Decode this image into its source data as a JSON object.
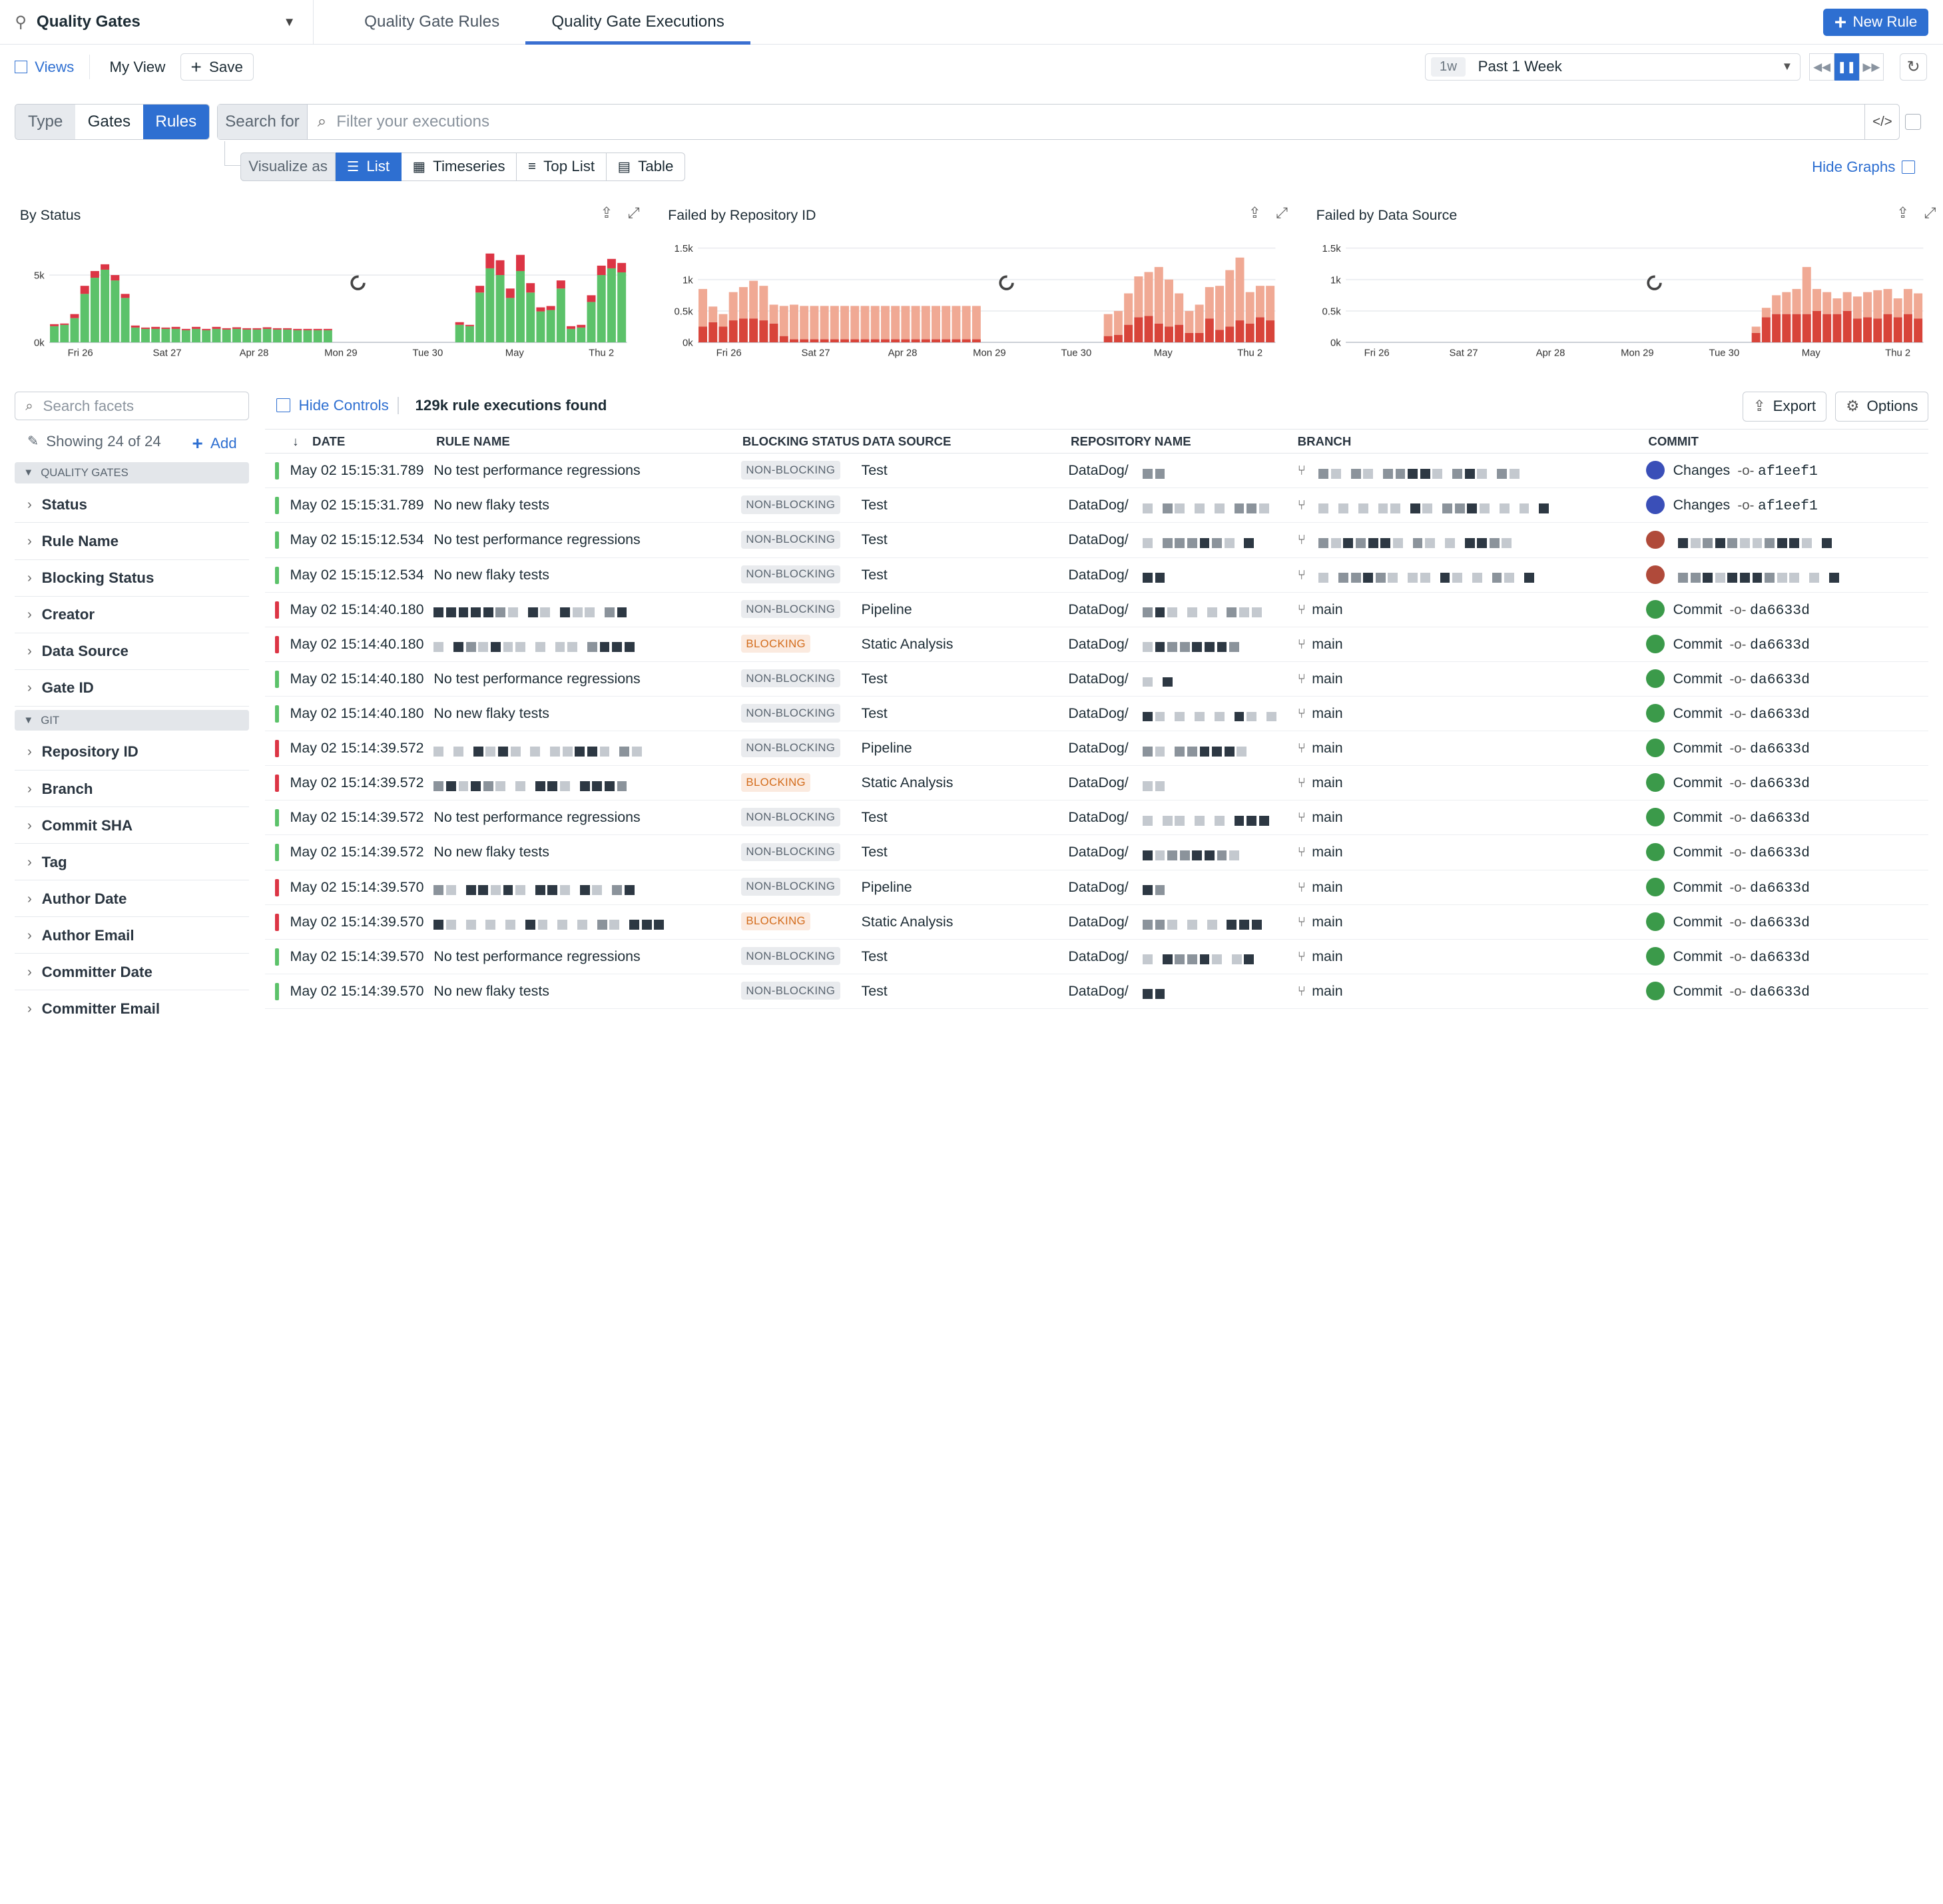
{
  "header": {
    "title": "Quality Gates",
    "tabs": [
      "Quality Gate Rules",
      "Quality Gate Executions"
    ],
    "active_tab": "Quality Gate Executions",
    "new_rule_label": "New Rule"
  },
  "viewsbar": {
    "views_label": "Views",
    "my_view_label": "My View",
    "save_label": "Save",
    "time_badge": "1w",
    "time_label": "Past 1 Week"
  },
  "search": {
    "type_label": "Type",
    "options": [
      "Gates",
      "Rules"
    ],
    "selected": "Rules",
    "search_for_label": "Search for",
    "placeholder": "Filter your executions"
  },
  "visualize": {
    "label": "Visualize as",
    "options": [
      "List",
      "Timeseries",
      "Top List",
      "Table"
    ],
    "selected": "List",
    "hide_graphs_label": "Hide Graphs"
  },
  "colors": {
    "accent": "#2e6fd1",
    "pass": "#5cc26a",
    "fail": "#dc3545",
    "fail_light": "#f0a994",
    "fail_dark": "#d8443a"
  },
  "chart_data": [
    {
      "type": "bar",
      "title": "By Status",
      "x_ticks": [
        "Fri 26",
        "Sat 27",
        "Apr 28",
        "Mon 29",
        "Tue 30",
        "May",
        "Thu 2"
      ],
      "y_ticks": [
        "0k",
        "5k"
      ],
      "ylim": [
        0,
        7000
      ],
      "series": [
        {
          "color": "#5cc26a",
          "values": [
            1200,
            1300,
            1800,
            3600,
            4800,
            5400,
            4600,
            3300,
            1100,
            1000,
            1000,
            1000,
            1000,
            900,
            1000,
            900,
            1000,
            950,
            1000,
            950,
            950,
            1000,
            950,
            950,
            900,
            900,
            900,
            900,
            0,
            0,
            0,
            0,
            0,
            0,
            0,
            0,
            0,
            0,
            0,
            0,
            1300,
            1200,
            3700,
            5500,
            5000,
            3300,
            5300,
            3700,
            2300,
            2400,
            4000,
            1000,
            1100,
            3000,
            5000,
            5500,
            5200
          ]
        },
        {
          "color": "#dc3545",
          "values": [
            150,
            100,
            300,
            600,
            500,
            400,
            400,
            300,
            150,
            100,
            150,
            100,
            150,
            100,
            150,
            100,
            150,
            100,
            120,
            100,
            100,
            120,
            100,
            100,
            100,
            100,
            100,
            100,
            0,
            0,
            0,
            0,
            0,
            0,
            0,
            0,
            0,
            0,
            0,
            0,
            200,
            100,
            500,
            1100,
            1100,
            700,
            1200,
            700,
            300,
            300,
            600,
            200,
            200,
            500,
            700,
            700,
            700
          ]
        }
      ]
    },
    {
      "type": "bar",
      "title": "Failed by Repository ID",
      "x_ticks": [
        "Fri 26",
        "Sat 27",
        "Apr 28",
        "Mon 29",
        "Tue 30",
        "May",
        "Thu 2"
      ],
      "y_ticks": [
        "0k",
        "0.5k",
        "1k",
        "1.5k"
      ],
      "ylim": [
        0,
        1500
      ],
      "series": [
        {
          "color": "#d8443a",
          "values": [
            250,
            320,
            250,
            350,
            380,
            380,
            350,
            300,
            100,
            50,
            50,
            50,
            50,
            50,
            50,
            50,
            50,
            50,
            50,
            50,
            50,
            50,
            50,
            50,
            50,
            50,
            50,
            50,
            0,
            0,
            0,
            0,
            0,
            0,
            0,
            0,
            0,
            0,
            0,
            0,
            100,
            120,
            280,
            400,
            420,
            300,
            250,
            280,
            150,
            150,
            380,
            200,
            250,
            350,
            300,
            400,
            350
          ]
        },
        {
          "color": "#f0a994",
          "values": [
            600,
            250,
            200,
            450,
            500,
            600,
            550,
            300,
            480,
            550,
            530,
            530,
            530,
            530,
            530,
            530,
            530,
            530,
            530,
            530,
            530,
            530,
            530,
            530,
            530,
            530,
            530,
            530,
            0,
            0,
            0,
            0,
            0,
            0,
            0,
            0,
            0,
            0,
            0,
            0,
            350,
            380,
            500,
            650,
            700,
            900,
            750,
            500,
            350,
            450,
            500,
            700,
            900,
            1000,
            500,
            500,
            550
          ]
        }
      ]
    },
    {
      "type": "bar",
      "title": "Failed by Data Source",
      "x_ticks": [
        "Fri 26",
        "Sat 27",
        "Apr 28",
        "Mon 29",
        "Tue 30",
        "May",
        "Thu 2"
      ],
      "y_ticks": [
        "0k",
        "0.5k",
        "1k",
        "1.5k"
      ],
      "ylim": [
        0,
        1500
      ],
      "series": [
        {
          "color": "#d8443a",
          "values": [
            0,
            0,
            0,
            0,
            0,
            0,
            0,
            0,
            0,
            0,
            0,
            0,
            0,
            0,
            0,
            0,
            0,
            0,
            0,
            0,
            0,
            0,
            0,
            0,
            0,
            0,
            0,
            0,
            0,
            0,
            0,
            0,
            0,
            0,
            0,
            0,
            0,
            0,
            0,
            0,
            150,
            400,
            450,
            450,
            450,
            450,
            500,
            450,
            450,
            500,
            380,
            400,
            380,
            450,
            400,
            450,
            380
          ]
        },
        {
          "color": "#f0a994",
          "values": [
            0,
            0,
            0,
            0,
            0,
            0,
            0,
            0,
            0,
            0,
            0,
            0,
            0,
            0,
            0,
            0,
            0,
            0,
            0,
            0,
            0,
            0,
            0,
            0,
            0,
            0,
            0,
            0,
            0,
            0,
            0,
            0,
            0,
            0,
            0,
            0,
            0,
            0,
            0,
            0,
            100,
            150,
            300,
            350,
            400,
            750,
            350,
            350,
            250,
            300,
            350,
            400,
            450,
            400,
            300,
            400,
            400
          ]
        }
      ]
    }
  ],
  "facets": {
    "search_placeholder": "Search facets",
    "showing_label": "Showing 24 of 24",
    "add_label": "Add",
    "sections": [
      {
        "name": "QUALITY GATES",
        "items": [
          "Status",
          "Rule Name",
          "Blocking Status",
          "Creator",
          "Data Source",
          "Gate ID"
        ]
      },
      {
        "name": "GIT",
        "items": [
          "Repository ID",
          "Branch",
          "Commit SHA",
          "Tag",
          "Author Date",
          "Author Email",
          "Committer Date",
          "Committer Email"
        ]
      }
    ]
  },
  "results": {
    "hide_controls_label": "Hide Controls",
    "found_label": "129k rule executions found",
    "export_label": "Export",
    "options_label": "Options"
  },
  "table": {
    "columns": [
      "DATE",
      "RULE NAME",
      "BLOCKING STATUS",
      "DATA SOURCE",
      "REPOSITORY NAME",
      "BRANCH",
      "COMMIT"
    ],
    "rows": [
      {
        "status": "pass",
        "date": "May 02 15:15:31.789",
        "rule": "No test performance regressions",
        "blocking": "NON-BLOCKING",
        "source": "Test",
        "repo": "DataDog/",
        "branch": "",
        "commit_label": "Changes",
        "sha": "af1eef1"
      },
      {
        "status": "pass",
        "date": "May 02 15:15:31.789",
        "rule": "No new flaky tests",
        "blocking": "NON-BLOCKING",
        "source": "Test",
        "repo": "DataDog/",
        "branch": "",
        "commit_label": "Changes",
        "sha": "af1eef1"
      },
      {
        "status": "pass",
        "date": "May 02 15:15:12.534",
        "rule": "No test performance regressions",
        "blocking": "NON-BLOCKING",
        "source": "Test",
        "repo": "DataDog/",
        "branch": "",
        "commit_label": "",
        "sha": ""
      },
      {
        "status": "pass",
        "date": "May 02 15:15:12.534",
        "rule": "No new flaky tests",
        "blocking": "NON-BLOCKING",
        "source": "Test",
        "repo": "DataDog/",
        "branch": "",
        "commit_label": "",
        "sha": ""
      },
      {
        "status": "fail",
        "date": "May 02 15:14:40.180",
        "rule": "",
        "blocking": "NON-BLOCKING",
        "source": "Pipeline",
        "repo": "DataDog/",
        "branch": "main",
        "commit_label": "Commit",
        "sha": "da6633d"
      },
      {
        "status": "fail",
        "date": "May 02 15:14:40.180",
        "rule": "",
        "blocking": "BLOCKING",
        "source": "Static Analysis",
        "repo": "DataDog/",
        "branch": "main",
        "commit_label": "Commit",
        "sha": "da6633d"
      },
      {
        "status": "pass",
        "date": "May 02 15:14:40.180",
        "rule": "No test performance regressions",
        "blocking": "NON-BLOCKING",
        "source": "Test",
        "repo": "DataDog/",
        "branch": "main",
        "commit_label": "Commit",
        "sha": "da6633d"
      },
      {
        "status": "pass",
        "date": "May 02 15:14:40.180",
        "rule": "No new flaky tests",
        "blocking": "NON-BLOCKING",
        "source": "Test",
        "repo": "DataDog/",
        "branch": "main",
        "commit_label": "Commit",
        "sha": "da6633d"
      },
      {
        "status": "fail",
        "date": "May 02 15:14:39.572",
        "rule": "",
        "blocking": "NON-BLOCKING",
        "source": "Pipeline",
        "repo": "DataDog/",
        "branch": "main",
        "commit_label": "Commit",
        "sha": "da6633d"
      },
      {
        "status": "fail",
        "date": "May 02 15:14:39.572",
        "rule": "",
        "blocking": "BLOCKING",
        "source": "Static Analysis",
        "repo": "DataDog/",
        "branch": "main",
        "commit_label": "Commit",
        "sha": "da6633d"
      },
      {
        "status": "pass",
        "date": "May 02 15:14:39.572",
        "rule": "No test performance regressions",
        "blocking": "NON-BLOCKING",
        "source": "Test",
        "repo": "DataDog/",
        "branch": "main",
        "commit_label": "Commit",
        "sha": "da6633d"
      },
      {
        "status": "pass",
        "date": "May 02 15:14:39.572",
        "rule": "No new flaky tests",
        "blocking": "NON-BLOCKING",
        "source": "Test",
        "repo": "DataDog/",
        "branch": "main",
        "commit_label": "Commit",
        "sha": "da6633d"
      },
      {
        "status": "fail",
        "date": "May 02 15:14:39.570",
        "rule": "",
        "blocking": "NON-BLOCKING",
        "source": "Pipeline",
        "repo": "DataDog/",
        "branch": "main",
        "commit_label": "Commit",
        "sha": "da6633d"
      },
      {
        "status": "fail",
        "date": "May 02 15:14:39.570",
        "rule": "",
        "blocking": "BLOCKING",
        "source": "Static Analysis",
        "repo": "DataDog/",
        "branch": "main",
        "commit_label": "Commit",
        "sha": "da6633d"
      },
      {
        "status": "pass",
        "date": "May 02 15:14:39.570",
        "rule": "No test performance regressions",
        "blocking": "NON-BLOCKING",
        "source": "Test",
        "repo": "DataDog/",
        "branch": "main",
        "commit_label": "Commit",
        "sha": "da6633d"
      },
      {
        "status": "pass",
        "date": "May 02 15:14:39.570",
        "rule": "No new flaky tests",
        "blocking": "NON-BLOCKING",
        "source": "Test",
        "repo": "DataDog/",
        "branch": "main",
        "commit_label": "Commit",
        "sha": "da6633d"
      }
    ]
  }
}
